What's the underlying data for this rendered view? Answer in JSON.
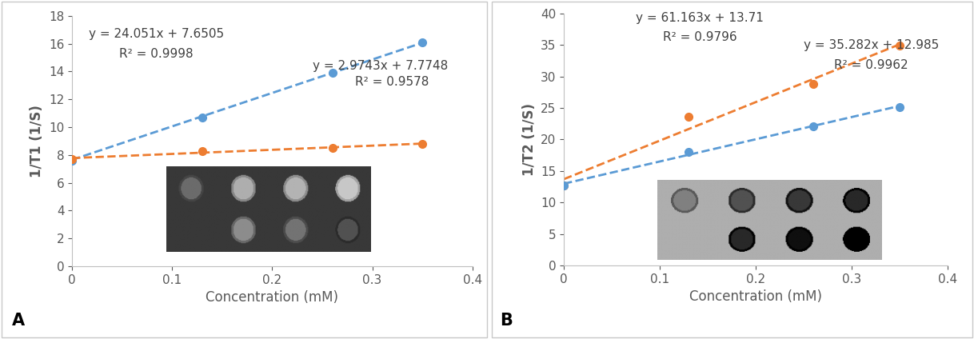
{
  "chart_data": [
    {
      "type": "scatter",
      "panel_label": "A",
      "x_label": "Concentration (mM)",
      "y_label": "1/T1 (1/S)",
      "xlim": [
        0,
        0.4
      ],
      "xticks": [
        0,
        0.1,
        0.2,
        0.3,
        0.4
      ],
      "ylim": [
        0,
        18
      ],
      "yticks": [
        0,
        2,
        4,
        6,
        8,
        10,
        12,
        14,
        16,
        18
      ],
      "grid": false,
      "series": [
        {
          "color": "#5b9bd5",
          "marker": "circle",
          "line_style": "dashed",
          "x": [
            0,
            0.13,
            0.26,
            0.35
          ],
          "values": [
            7.6,
            10.7,
            13.9,
            16.1
          ],
          "trendline": {
            "slope": 24.051,
            "intercept": 7.6505,
            "equation": "y = 24.051x + 7.6505",
            "r_squared": "R² = 0.9998"
          }
        },
        {
          "color": "#ed7d31",
          "marker": "circle",
          "line_style": "dashed",
          "x": [
            0,
            0.13,
            0.26,
            0.35
          ],
          "values": [
            7.7,
            8.3,
            8.5,
            8.8
          ],
          "trendline": {
            "slope": 2.9743,
            "intercept": 7.7748,
            "equation": "y = 2.9743x + 7.7748",
            "r_squared": "R² = 0.9578"
          }
        }
      ]
    },
    {
      "type": "scatter",
      "panel_label": "B",
      "x_label": "Concentration (mM)",
      "y_label": "1/T2 (1/S)",
      "xlim": [
        0,
        0.4
      ],
      "xticks": [
        0,
        0.1,
        0.2,
        0.3,
        0.4
      ],
      "ylim": [
        0,
        40
      ],
      "yticks": [
        0,
        5,
        10,
        15,
        20,
        25,
        30,
        35,
        40
      ],
      "grid": false,
      "series": [
        {
          "color": "#ed7d31",
          "marker": "circle",
          "line_style": "dashed",
          "x": [
            0,
            0.13,
            0.26,
            0.35
          ],
          "values": [
            12.7,
            23.6,
            28.8,
            34.9
          ],
          "trendline": {
            "slope": 61.163,
            "intercept": 13.71,
            "equation": "y = 61.163x + 13.71",
            "r_squared": "R² = 0.9796"
          }
        },
        {
          "color": "#5b9bd5",
          "marker": "circle",
          "line_style": "dashed",
          "x": [
            0,
            0.13,
            0.26,
            0.35
          ],
          "values": [
            12.7,
            18.0,
            22.1,
            25.2
          ],
          "trendline": {
            "slope": 35.282,
            "intercept": 12.985,
            "equation": "y = 35.282x + 12.985",
            "r_squared": "R² = 0.9962"
          }
        }
      ]
    }
  ]
}
